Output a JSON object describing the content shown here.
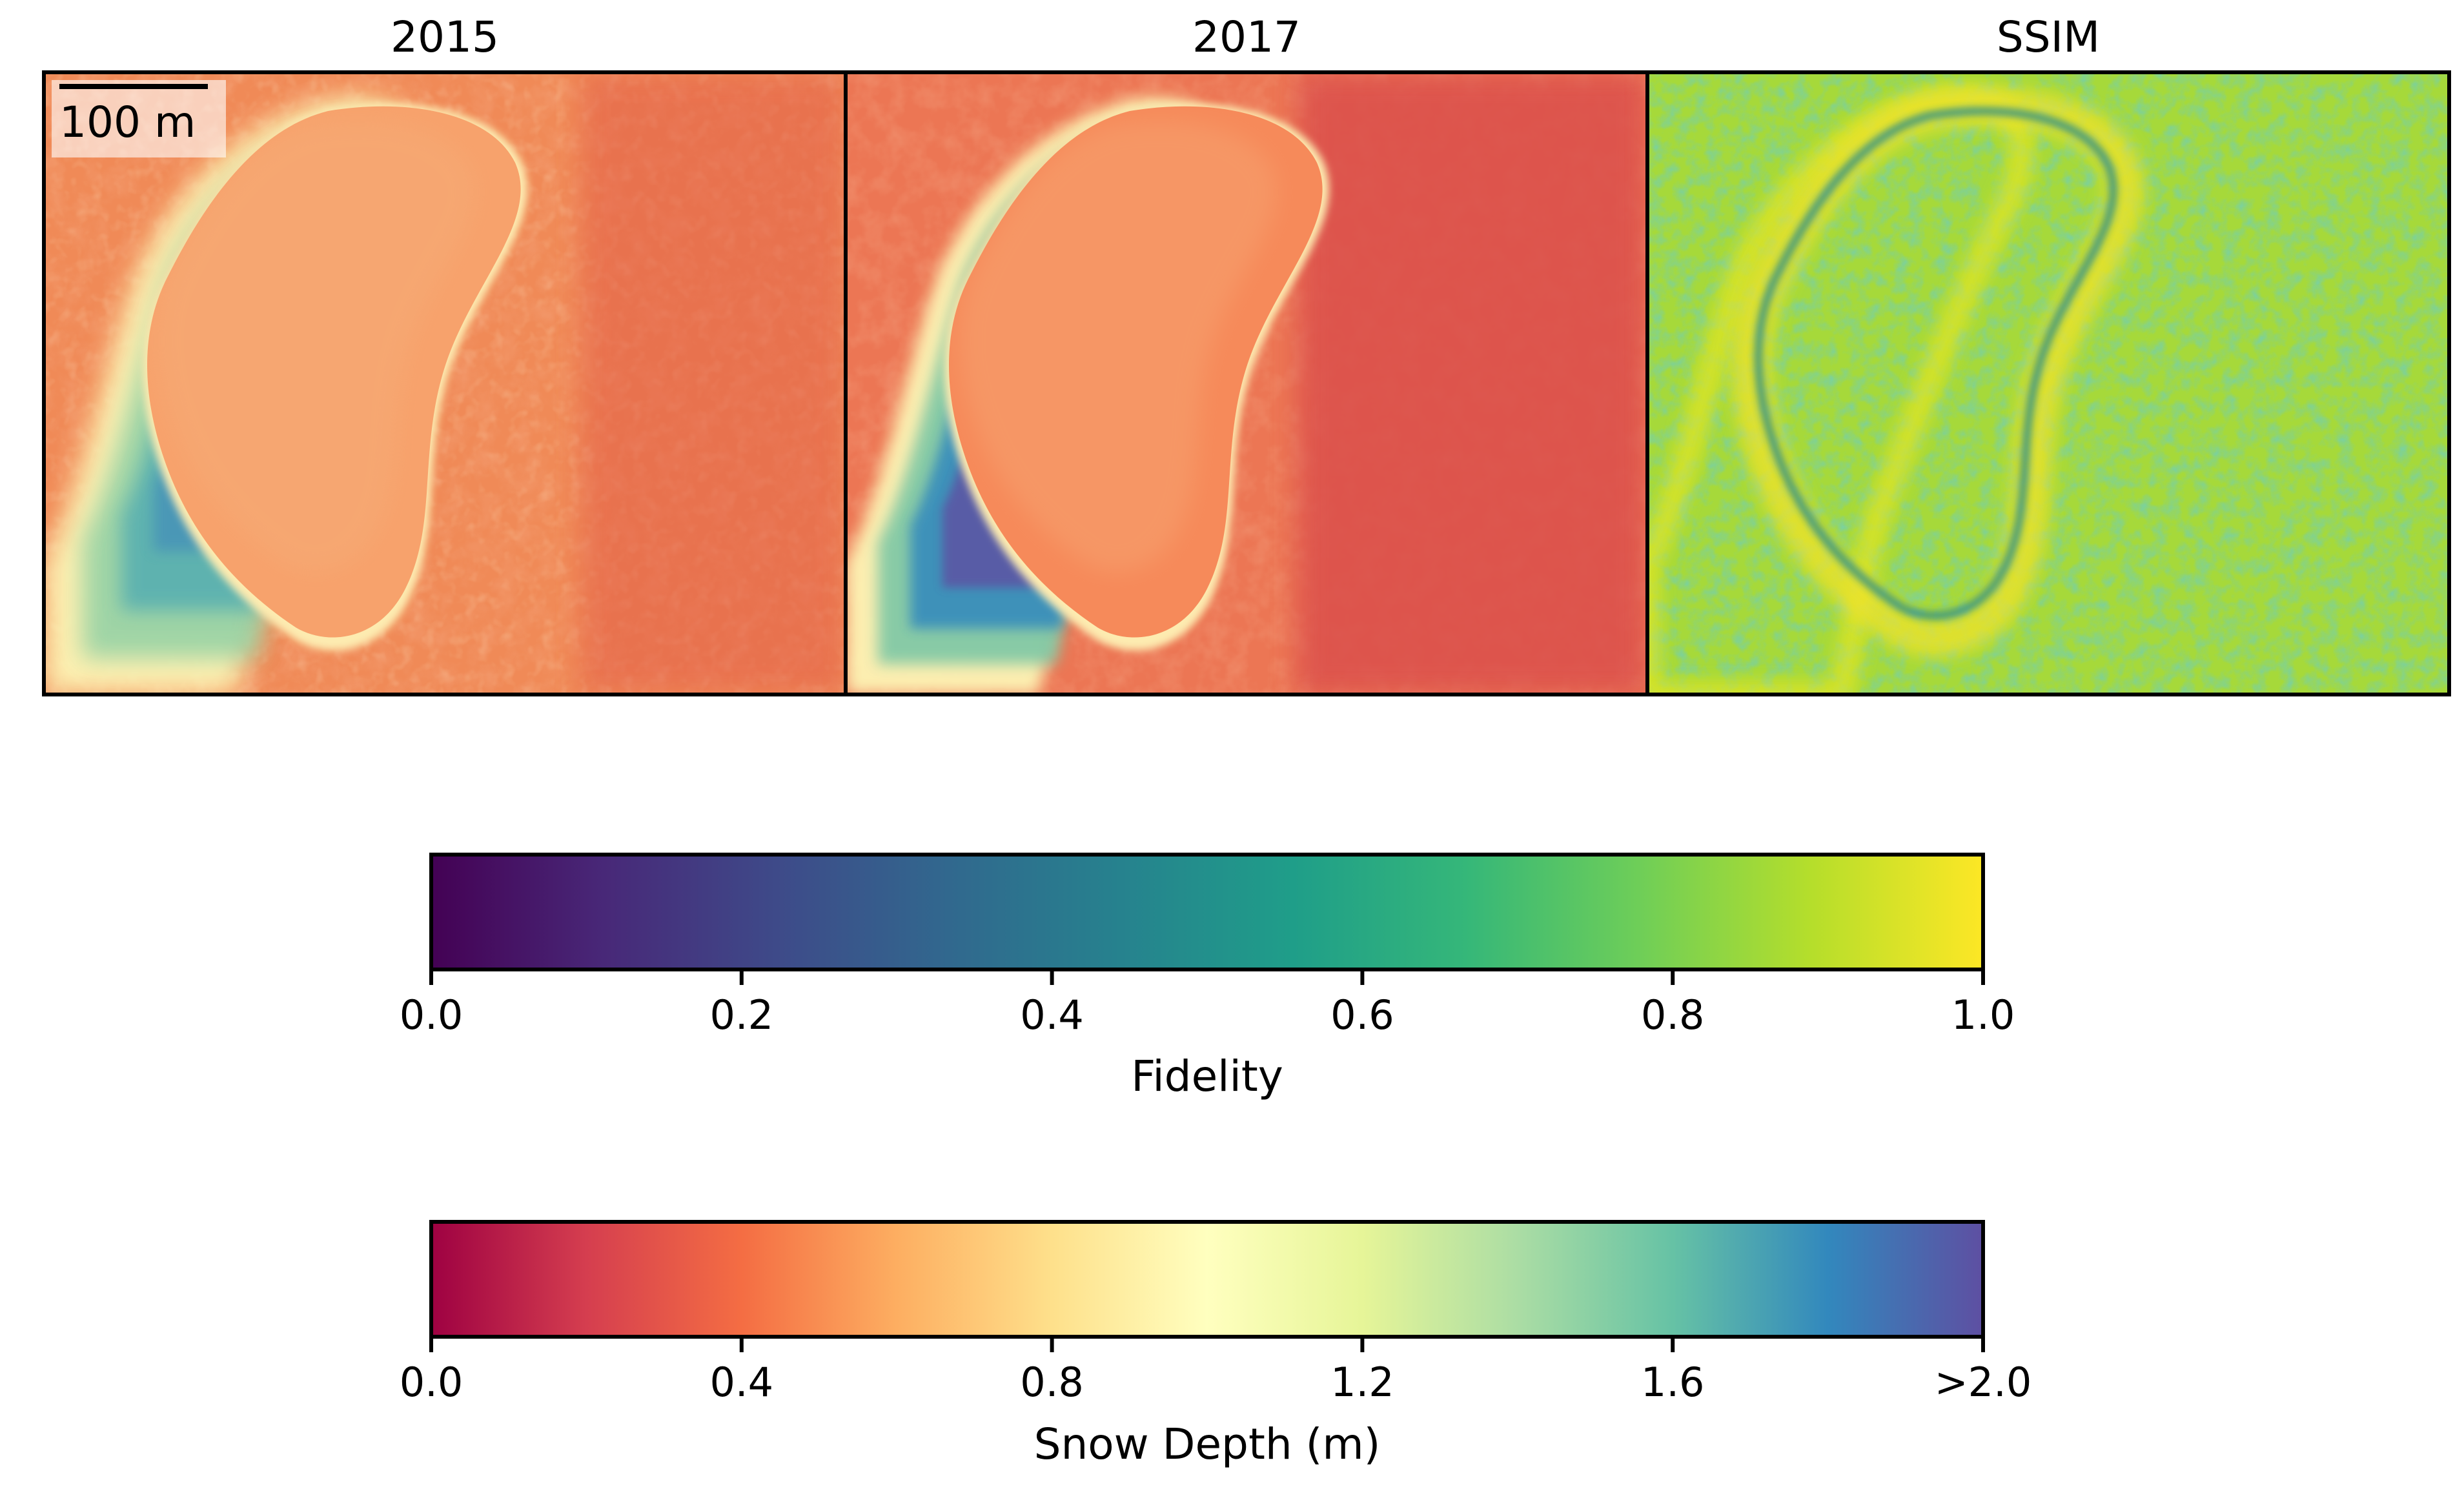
{
  "panels": [
    {
      "title": "2015",
      "content": "snow-depth map"
    },
    {
      "title": "2017",
      "content": "snow-depth map"
    },
    {
      "title": "SSIM",
      "content": "structural similarity map"
    }
  ],
  "scalebar": {
    "label": "100 m"
  },
  "colorbars": [
    {
      "name": "fidelity",
      "label": "Fidelity",
      "colormap": "viridis",
      "ticks": [
        "0.0",
        "0.2",
        "0.4",
        "0.6",
        "0.8",
        "1.0"
      ],
      "range": [
        0.0,
        1.0
      ],
      "stops": [
        "#440154",
        "#482878",
        "#3e4a89",
        "#31688e",
        "#26828e",
        "#1f9e89",
        "#35b779",
        "#6ece58",
        "#b5de2b",
        "#fde725"
      ]
    },
    {
      "name": "snow-depth",
      "label": "Snow Depth (m)",
      "colormap": "Spectral",
      "ticks": [
        "0.0",
        "0.4",
        "0.8",
        "1.2",
        "1.6",
        ">2.0"
      ],
      "range": [
        0.0,
        2.0
      ],
      "stops": [
        "#9e0142",
        "#d53e4f",
        "#f46d43",
        "#fdae61",
        "#fee08b",
        "#ffffbf",
        "#e6f598",
        "#abdda4",
        "#66c2a5",
        "#3288bd",
        "#5e4fa2"
      ]
    }
  ]
}
